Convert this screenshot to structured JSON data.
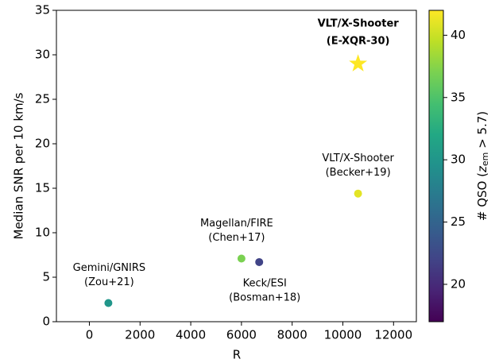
{
  "chart_data": {
    "type": "scatter",
    "x_label": "R",
    "y_label": "Median SNR per 10 km/s",
    "x": [
      750,
      6000,
      6700,
      10600,
      10600
    ],
    "values": [
      2.1,
      7.1,
      6.7,
      14.4,
      29.0
    ],
    "z": [
      30,
      37,
      22,
      41,
      42
    ],
    "markers": [
      "circle",
      "circle",
      "circle",
      "circle",
      "star"
    ],
    "labels": [
      [
        "Gemini/GNIRS",
        "(Zou+21)"
      ],
      [
        "Magellan/FIRE",
        "(Chen+17)"
      ],
      [
        "Keck/ESI",
        "(Bosman+18)"
      ],
      [
        "VLT/X-Shooter",
        "(Becker+19)"
      ],
      [
        "VLT/X-Shooter",
        "(E-XQR-30)"
      ]
    ],
    "xlim": [
      -1300,
      12900
    ],
    "ylim": [
      0,
      35
    ],
    "xticks": [
      0,
      2000,
      4000,
      6000,
      8000,
      10000,
      12000
    ],
    "yticks": [
      0,
      5,
      10,
      15,
      20,
      25,
      30,
      35
    ],
    "colormap": "viridis",
    "zlim": [
      17,
      42
    ],
    "zticks": [
      20,
      25,
      30,
      35,
      40
    ],
    "colorbar_label": {
      "prefix": "# QSO (",
      "var": "z",
      "sub": "em",
      "suffix": " > 5.7)"
    }
  }
}
